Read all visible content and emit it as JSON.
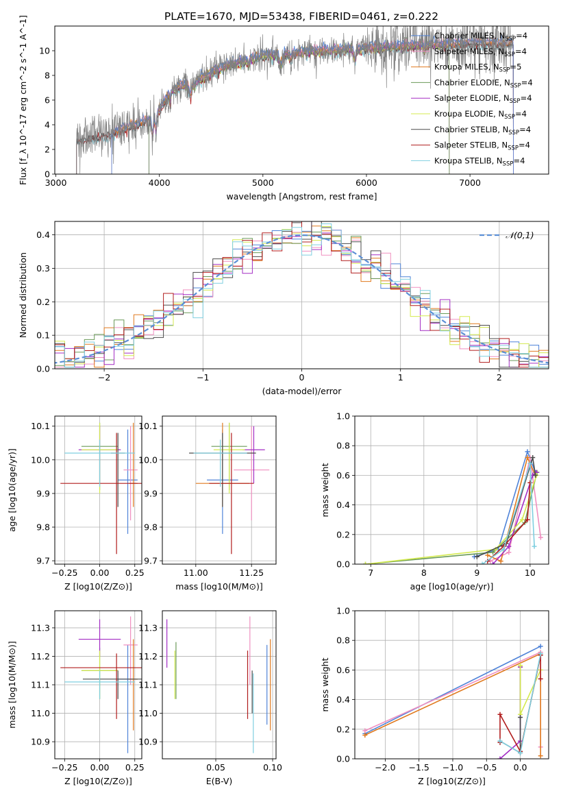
{
  "figure": {
    "title": "PLATE=1670, MJD=53438, FIBERID=0461, z=0.222"
  },
  "colors": {
    "Chabrier MILES": "#4f83d8",
    "Salpeter MILES": "#f08fc0",
    "Kroupa MILES": "#e07a1f",
    "Chabrier ELODIE": "#6a9a58",
    "Salpeter ELODIE": "#a32cc4",
    "Kroupa ELODIE": "#d4ea4e",
    "Chabrier STELIB": "#4a4a4a",
    "Salpeter STELIB": "#b01c1c",
    "Kroupa STELIB": "#7fcfe0",
    "data_spectrum": "#808080",
    "normal_curve": "#5b8fd6"
  },
  "chart_data": [
    {
      "id": "spectrum",
      "type": "line",
      "title": "PLATE=1670, MJD=53438, FIBERID=0461, z=0.222",
      "xlabel": "wavelength [Angstrom, rest frame]",
      "ylabel": "Flux [f_λ 10^-17 erg cm^-2 s^-1 A^-1]",
      "xlim": [
        2990,
        7760
      ],
      "ylim": [
        0,
        12
      ],
      "xticks": [
        3000,
        4000,
        5000,
        6000,
        7000
      ],
      "yticks": [
        0,
        2,
        4,
        6,
        8,
        10
      ],
      "grid": false,
      "legend_position": "top-right",
      "legend": [
        "Chabrier MILES, N_SSP=4",
        "Salpeter MILES, N_SSP=4",
        "Kroupa MILES, N_SSP=5",
        "Chabrier ELODIE, N_SSP=4",
        "Salpeter ELODIE, N_SSP=4",
        "Kroupa ELODIE, N_SSP=4",
        "Chabrier STELIB, N_SSP=4",
        "Salpeter STELIB, N_SSP=4",
        "Kroupa STELIB, N_SSP=4"
      ],
      "continuum": {
        "wavelength": [
          3200,
          3300,
          3400,
          3500,
          3600,
          3700,
          3800,
          3900,
          4000,
          4100,
          4200,
          4300,
          4400,
          4500,
          4600,
          4700,
          4800,
          4900,
          5000,
          5200,
          5400,
          5600,
          5800,
          6000,
          6200,
          6400,
          6600,
          6800,
          7000,
          7200,
          7400
        ],
        "flux": [
          2.7,
          3.0,
          3.1,
          3.2,
          3.5,
          3.8,
          4.1,
          4.4,
          5.2,
          6.6,
          7.1,
          7.3,
          7.7,
          8.2,
          8.6,
          8.9,
          9.1,
          9.3,
          9.6,
          9.7,
          9.9,
          10.0,
          10.1,
          10.2,
          10.3,
          10.4,
          10.5,
          10.5,
          10.6,
          10.6,
          10.6
        ]
      },
      "model_coverage": {
        "MILES": [
          3540,
          7420
        ],
        "ELODIE": [
          3900,
          6800
        ],
        "STELIB": [
          3200,
          7420
        ]
      }
    },
    {
      "id": "residuals",
      "type": "line",
      "xlabel": "(data-model)/error",
      "ylabel": "Normed distribution",
      "xlim": [
        -2.5,
        2.5
      ],
      "ylim": [
        0,
        0.44
      ],
      "xticks": [
        -2,
        -1,
        0,
        1,
        2
      ],
      "yticks": [
        0.0,
        0.1,
        0.2,
        0.3,
        0.4
      ],
      "grid": true,
      "legend_position": "top-right",
      "legend": [
        "𝒩(0,1)"
      ],
      "bin_width": 0.1
    },
    {
      "id": "age-vs-Z",
      "type": "scatter",
      "xlabel": "Z [log10(Z/Z⊙)]",
      "ylabel": "age  [log10(age/yr)]",
      "xlim": [
        -0.32,
        0.3
      ],
      "ylim": [
        9.69,
        10.13
      ],
      "xticks": [
        -0.25,
        0.0,
        0.25
      ],
      "yticks": [
        9.7,
        9.8,
        9.9,
        10.0,
        10.1
      ],
      "grid": true,
      "points": [
        {
          "model": "Chabrier MILES",
          "x": 0.2,
          "y": 9.94,
          "x_err": 0.07,
          "y_err": [
            0.16,
            0.15
          ]
        },
        {
          "model": "Salpeter MILES",
          "x": 0.22,
          "y": 9.97,
          "x_err": 0.05,
          "y_err": [
            0.15,
            0.13
          ]
        },
        {
          "model": "Kroupa MILES",
          "x": 0.24,
          "y": 9.93,
          "x_err": 0.03,
          "y_err": [
            0.07,
            0.18
          ]
        },
        {
          "model": "Chabrier ELODIE",
          "x": 0.0,
          "y": 10.04,
          "x_err": 0.13,
          "y_err": [
            0.13,
            0.07
          ]
        },
        {
          "model": "Salpeter ELODIE",
          "x": 0.0,
          "y": 10.03,
          "x_err": 0.15,
          "y_err": [
            0.1,
            0.07
          ]
        },
        {
          "model": "Kroupa ELODIE",
          "x": 0.0,
          "y": 10.03,
          "x_err": 0.13,
          "y_err": [
            0.13,
            0.08
          ]
        },
        {
          "model": "Chabrier STELIB",
          "x": 0.13,
          "y": 10.02,
          "x_err": 0.05,
          "y_err": [
            0.16,
            0.06
          ]
        },
        {
          "model": "Salpeter STELIB",
          "x": 0.12,
          "y": 9.93,
          "x_err": 0.4,
          "y_err": [
            0.21,
            0.15
          ]
        },
        {
          "model": "Kroupa STELIB",
          "x": 0.0,
          "y": 10.02,
          "x_err": 0.25,
          "y_err": [
            0.1,
            0.04
          ]
        }
      ]
    },
    {
      "id": "age-vs-mass",
      "type": "scatter",
      "xlabel": "mass [log10(M/M⊙)]",
      "ylabel": "",
      "xlim": [
        10.85,
        11.36
      ],
      "ylim": [
        9.69,
        10.13
      ],
      "xticks": [
        11.0,
        11.25
      ],
      "yticks": [
        9.7,
        9.8,
        9.9,
        10.0,
        10.1
      ],
      "grid": true,
      "points": [
        {
          "model": "Chabrier MILES",
          "x": 11.12,
          "y": 9.94,
          "x_err": 0.07,
          "y_err": [
            0.16,
            0.15
          ]
        },
        {
          "model": "Salpeter MILES",
          "x": 11.25,
          "y": 9.97,
          "x_err": 0.08,
          "y_err": [
            0.15,
            0.13
          ]
        },
        {
          "model": "Kroupa MILES",
          "x": 11.12,
          "y": 9.93,
          "x_err": 0.12,
          "y_err": [
            0.07,
            0.18
          ]
        },
        {
          "model": "Chabrier ELODIE",
          "x": 11.15,
          "y": 10.04,
          "x_err": 0.08,
          "y_err": [
            0.13,
            0.07
          ]
        },
        {
          "model": "Salpeter ELODIE",
          "x": 11.26,
          "y": 10.03,
          "x_err": 0.05,
          "y_err": [
            0.1,
            0.07
          ]
        },
        {
          "model": "Kroupa ELODIE",
          "x": 11.15,
          "y": 10.03,
          "x_err": 0.07,
          "y_err": [
            0.13,
            0.08
          ]
        },
        {
          "model": "Chabrier STELIB",
          "x": 11.12,
          "y": 10.02,
          "x_err": 0.15,
          "y_err": [
            0.16,
            0.06
          ]
        },
        {
          "model": "Salpeter STELIB",
          "x": 11.16,
          "y": 9.93,
          "x_err": 0.1,
          "y_err": [
            0.21,
            0.15
          ]
        },
        {
          "model": "Kroupa STELIB",
          "x": 11.11,
          "y": 10.02,
          "x_err": 0.12,
          "y_err": [
            0.1,
            0.04
          ]
        }
      ]
    },
    {
      "id": "mass-weight-vs-age",
      "type": "line",
      "xlabel": "age  [log10(age/yr)]",
      "ylabel": "mass weight",
      "xlim": [
        6.7,
        10.35
      ],
      "ylim": [
        0,
        1.0
      ],
      "xticks": [
        7,
        8,
        9,
        10
      ],
      "yticks": [
        0.0,
        0.2,
        0.4,
        0.6,
        0.8,
        1.0
      ],
      "grid": true,
      "series": [
        {
          "model": "Chabrier MILES",
          "x": [
            8.95,
            9.4,
            9.95,
            10.1
          ],
          "y": [
            0.05,
            0.1,
            0.76,
            0.62
          ]
        },
        {
          "model": "Salpeter MILES",
          "x": [
            9.25,
            9.6,
            10.0,
            10.2
          ],
          "y": [
            0.02,
            0.08,
            0.72,
            0.18
          ]
        },
        {
          "model": "Kroupa MILES",
          "x": [
            9.2,
            9.45,
            9.95,
            10.1
          ],
          "y": [
            0.06,
            0.02,
            0.72,
            0.6
          ]
        },
        {
          "model": "Chabrier ELODIE",
          "x": [
            6.9,
            9.3,
            9.9,
            10.13
          ],
          "y": [
            0.0,
            0.08,
            0.28,
            0.62
          ]
        },
        {
          "model": "Salpeter ELODIE",
          "x": [
            9.3,
            9.6,
            10.05,
            10.12
          ],
          "y": [
            0.0,
            0.12,
            0.6,
            0.62
          ]
        },
        {
          "model": "Kroupa ELODIE",
          "x": [
            6.9,
            9.35,
            9.85,
            10.12
          ],
          "y": [
            0.0,
            0.1,
            0.3,
            0.6
          ]
        },
        {
          "model": "Chabrier STELIB",
          "x": [
            9.0,
            9.55,
            10.05,
            10.1
          ],
          "y": [
            0.05,
            0.14,
            0.72,
            0.6
          ]
        },
        {
          "model": "Salpeter STELIB",
          "x": [
            9.2,
            9.5,
            9.95,
            10.0
          ],
          "y": [
            0.02,
            0.12,
            0.3,
            0.55
          ]
        },
        {
          "model": "Kroupa STELIB",
          "x": [
            9.1,
            9.5,
            10.0,
            10.08
          ],
          "y": [
            0.0,
            0.1,
            0.68,
            0.12
          ]
        }
      ]
    },
    {
      "id": "mass-vs-Z",
      "type": "scatter",
      "xlabel": "Z [log10(Z/Z⊙)]",
      "ylabel": "mass [log10(M/M⊙)]",
      "xlim": [
        -0.32,
        0.3
      ],
      "ylim": [
        10.84,
        11.36
      ],
      "xticks": [
        -0.25,
        0.0,
        0.25
      ],
      "yticks": [
        10.9,
        11.0,
        11.1,
        11.2,
        11.3
      ],
      "grid": true,
      "points": [
        {
          "model": "Chabrier MILES",
          "x": 0.2,
          "y": 11.12,
          "x_err": 0.07,
          "y_err": [
            0.26,
            0.12
          ]
        },
        {
          "model": "Salpeter MILES",
          "x": 0.22,
          "y": 11.24,
          "x_err": 0.05,
          "y_err": [
            0.14,
            0.1
          ]
        },
        {
          "model": "Kroupa MILES",
          "x": 0.24,
          "y": 11.12,
          "x_err": 0.03,
          "y_err": [
            0.18,
            0.14
          ]
        },
        {
          "model": "Chabrier ELODIE",
          "x": 0.0,
          "y": 11.15,
          "x_err": 0.13,
          "y_err": [
            0.1,
            0.08
          ]
        },
        {
          "model": "Salpeter ELODIE",
          "x": 0.0,
          "y": 11.26,
          "x_err": 0.15,
          "y_err": [
            0.06,
            0.07
          ]
        },
        {
          "model": "Kroupa ELODIE",
          "x": 0.0,
          "y": 11.15,
          "x_err": 0.13,
          "y_err": [
            0.1,
            0.07
          ]
        },
        {
          "model": "Chabrier STELIB",
          "x": 0.13,
          "y": 11.12,
          "x_err": 0.25,
          "y_err": [
            0.07,
            0.03
          ]
        },
        {
          "model": "Salpeter STELIB",
          "x": 0.12,
          "y": 11.16,
          "x_err": 0.4,
          "y_err": [
            0.18,
            0.05
          ]
        },
        {
          "model": "Kroupa STELIB",
          "x": 0.0,
          "y": 11.11,
          "x_err": 0.25,
          "y_err": [
            0.06,
            0.04
          ]
        }
      ]
    },
    {
      "id": "mass-vs-ebv",
      "type": "scatter",
      "xlabel": "E(B-V)",
      "ylabel": "",
      "xlim": [
        0.003,
        0.103
      ],
      "ylim": [
        10.84,
        11.36
      ],
      "xticks": [
        0.05,
        0.1
      ],
      "yticks": [
        10.9,
        11.0,
        11.1,
        11.2,
        11.3
      ],
      "grid": true,
      "points": [
        {
          "model": "Chabrier MILES",
          "x": 0.095,
          "y": 11.12,
          "x_err": 0,
          "y_err": [
            0.16,
            0.12
          ]
        },
        {
          "model": "Salpeter MILES",
          "x": 0.08,
          "y": 11.24,
          "x_err": 0,
          "y_err": [
            0.14,
            0.1
          ]
        },
        {
          "model": "Kroupa MILES",
          "x": 0.098,
          "y": 11.12,
          "x_err": 0,
          "y_err": [
            0.18,
            0.14
          ]
        },
        {
          "model": "Chabrier ELODIE",
          "x": 0.015,
          "y": 11.15,
          "x_err": 0,
          "y_err": [
            0.1,
            0.1
          ]
        },
        {
          "model": "Salpeter ELODIE",
          "x": 0.007,
          "y": 11.26,
          "x_err": 0,
          "y_err": [
            0.1,
            0.07
          ]
        },
        {
          "model": "Kroupa ELODIE",
          "x": 0.014,
          "y": 11.15,
          "x_err": 0,
          "y_err": [
            0.1,
            0.07
          ]
        },
        {
          "model": "Chabrier STELIB",
          "x": 0.082,
          "y": 11.1,
          "x_err": 0,
          "y_err": [
            0.1,
            0.05
          ]
        },
        {
          "model": "Salpeter STELIB",
          "x": 0.078,
          "y": 11.1,
          "x_err": 0,
          "y_err": [
            0.12,
            0.12
          ]
        },
        {
          "model": "Kroupa STELIB",
          "x": 0.083,
          "y": 11.05,
          "x_err": 0,
          "y_err": [
            0.19,
            0.09
          ]
        }
      ]
    },
    {
      "id": "mass-weight-vs-Z",
      "type": "line",
      "xlabel": "Z [log10(Z/Z⊙)]",
      "ylabel": "mass weight",
      "xlim": [
        -2.45,
        0.42
      ],
      "ylim": [
        0,
        1.0
      ],
      "xticks": [
        -2.0,
        -1.5,
        -1.0,
        -0.5,
        0.0
      ],
      "yticks": [
        0.0,
        0.2,
        0.4,
        0.6,
        0.8,
        1.0
      ],
      "grid": true,
      "series": [
        {
          "model": "Chabrier MILES",
          "x": [
            -2.3,
            0.3
          ],
          "y": [
            0.17,
            0.76
          ]
        },
        {
          "model": "Salpeter MILES",
          "x": [
            -2.3,
            0.3,
            0.3
          ],
          "y": [
            0.19,
            0.72,
            0.08
          ]
        },
        {
          "model": "Kroupa MILES",
          "x": [
            -2.3,
            0.3,
            0.3
          ],
          "y": [
            0.16,
            0.71,
            0.02
          ]
        },
        {
          "model": "Chabrier ELODIE",
          "x": [
            0.0,
            0.0,
            0.3
          ],
          "y": [
            0.62,
            0.05,
            0.7
          ]
        },
        {
          "model": "Salpeter ELODIE",
          "x": [
            -0.3,
            0.0,
            0.0
          ],
          "y": [
            0.0,
            0.12,
            0.62
          ]
        },
        {
          "model": "Kroupa ELODIE",
          "x": [
            0.0,
            0.0,
            0.3
          ],
          "y": [
            0.63,
            0.3,
            0.6
          ]
        },
        {
          "model": "Chabrier STELIB",
          "x": [
            -0.3,
            0.0,
            0.0
          ],
          "y": [
            0.12,
            0.04,
            0.28
          ]
        },
        {
          "model": "Salpeter STELIB",
          "x": [
            -0.3,
            -0.3,
            0.0,
            0.3,
            0.3
          ],
          "y": [
            0.11,
            0.3,
            0.05,
            0.7,
            0.54
          ]
        },
        {
          "model": "Kroupa STELIB",
          "x": [
            -0.3,
            0.0,
            0.3
          ],
          "y": [
            0.12,
            0.04,
            0.71
          ]
        }
      ]
    }
  ]
}
